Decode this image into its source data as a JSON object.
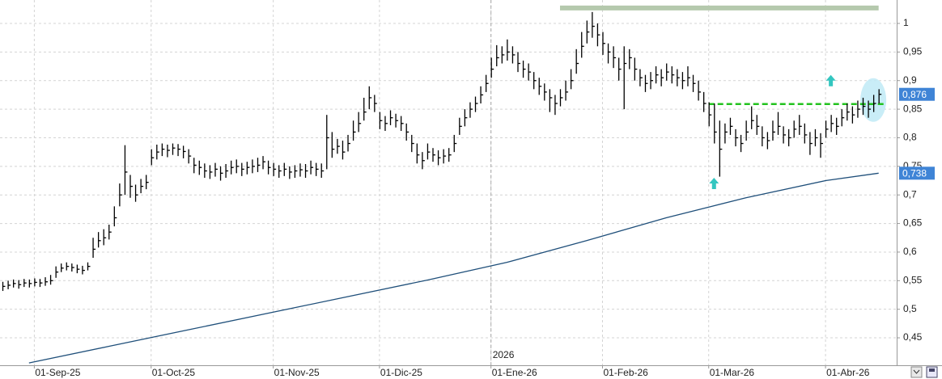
{
  "chart_data": {
    "type": "hlc",
    "color": "#000000",
    "high": [
      0.548,
      0.55,
      0.552,
      0.551,
      0.553,
      0.552,
      0.554,
      0.553,
      0.556,
      0.56,
      0.575,
      0.58,
      0.582,
      0.58,
      0.578,
      0.576,
      0.582,
      0.625,
      0.635,
      0.64,
      0.648,
      0.68,
      0.72,
      0.787,
      0.735,
      0.718,
      0.728,
      0.735,
      0.78,
      0.788,
      0.79,
      0.788,
      0.79,
      0.789,
      0.786,
      0.78,
      0.765,
      0.76,
      0.755,
      0.752,
      0.756,
      0.75,
      0.754,
      0.76,
      0.762,
      0.756,
      0.758,
      0.762,
      0.765,
      0.768,
      0.76,
      0.756,
      0.752,
      0.756,
      0.75,
      0.752,
      0.755,
      0.754,
      0.76,
      0.756,
      0.755,
      0.84,
      0.81,
      0.798,
      0.795,
      0.805,
      0.83,
      0.845,
      0.87,
      0.89,
      0.875,
      0.845,
      0.838,
      0.848,
      0.842,
      0.838,
      0.825,
      0.805,
      0.79,
      0.775,
      0.79,
      0.782,
      0.778,
      0.78,
      0.782,
      0.805,
      0.835,
      0.85,
      0.862,
      0.872,
      0.89,
      0.91,
      0.94,
      0.962,
      0.96,
      0.972,
      0.96,
      0.95,
      0.935,
      0.93,
      0.915,
      0.905,
      0.895,
      0.885,
      0.875,
      0.885,
      0.9,
      0.92,
      0.955,
      0.985,
      1.005,
      1.02,
      1.0,
      0.985,
      0.965,
      0.96,
      0.94,
      0.96,
      0.955,
      0.94,
      0.92,
      0.91,
      0.915,
      0.925,
      0.92,
      0.93,
      0.925,
      0.92,
      0.915,
      0.925,
      0.91,
      0.9,
      0.88,
      0.862,
      0.86,
      0.83,
      0.825,
      0.835,
      0.815,
      0.805,
      0.83,
      0.855,
      0.84,
      0.82,
      0.81,
      0.83,
      0.845,
      0.82,
      0.815,
      0.83,
      0.84,
      0.825,
      0.81,
      0.815,
      0.808,
      0.83,
      0.84,
      0.835,
      0.85,
      0.86,
      0.855,
      0.865,
      0.87,
      0.865,
      0.875,
      0.885
    ],
    "low": [
      0.532,
      0.535,
      0.538,
      0.536,
      0.539,
      0.538,
      0.54,
      0.539,
      0.541,
      0.543,
      0.555,
      0.565,
      0.568,
      0.566,
      0.563,
      0.561,
      0.568,
      0.59,
      0.608,
      0.612,
      0.622,
      0.645,
      0.68,
      0.7,
      0.695,
      0.688,
      0.703,
      0.71,
      0.752,
      0.762,
      0.768,
      0.766,
      0.77,
      0.768,
      0.764,
      0.755,
      0.738,
      0.735,
      0.73,
      0.728,
      0.732,
      0.725,
      0.73,
      0.736,
      0.738,
      0.733,
      0.736,
      0.738,
      0.74,
      0.745,
      0.736,
      0.733,
      0.73,
      0.733,
      0.728,
      0.73,
      0.732,
      0.73,
      0.736,
      0.733,
      0.73,
      0.745,
      0.765,
      0.772,
      0.762,
      0.776,
      0.795,
      0.81,
      0.83,
      0.85,
      0.845,
      0.815,
      0.812,
      0.822,
      0.818,
      0.812,
      0.795,
      0.775,
      0.755,
      0.745,
      0.762,
      0.758,
      0.752,
      0.755,
      0.758,
      0.775,
      0.805,
      0.82,
      0.835,
      0.845,
      0.86,
      0.88,
      0.905,
      0.925,
      0.93,
      0.935,
      0.93,
      0.915,
      0.905,
      0.9,
      0.885,
      0.875,
      0.865,
      0.845,
      0.84,
      0.855,
      0.865,
      0.885,
      0.912,
      0.94,
      0.965,
      0.975,
      0.96,
      0.945,
      0.93,
      0.922,
      0.9,
      0.85,
      0.92,
      0.9,
      0.89,
      0.88,
      0.885,
      0.895,
      0.89,
      0.9,
      0.895,
      0.89,
      0.885,
      0.89,
      0.88,
      0.865,
      0.845,
      0.82,
      0.79,
      0.732,
      0.79,
      0.805,
      0.785,
      0.775,
      0.795,
      0.815,
      0.805,
      0.785,
      0.78,
      0.795,
      0.805,
      0.79,
      0.785,
      0.8,
      0.805,
      0.79,
      0.77,
      0.785,
      0.765,
      0.8,
      0.81,
      0.805,
      0.82,
      0.83,
      0.825,
      0.835,
      0.84,
      0.835,
      0.845,
      0.86
    ],
    "close": [
      0.54,
      0.542,
      0.545,
      0.543,
      0.546,
      0.545,
      0.547,
      0.546,
      0.548,
      0.55,
      0.565,
      0.572,
      0.575,
      0.573,
      0.57,
      0.568,
      0.575,
      0.605,
      0.62,
      0.625,
      0.635,
      0.66,
      0.7,
      0.74,
      0.715,
      0.7,
      0.715,
      0.722,
      0.765,
      0.775,
      0.78,
      0.778,
      0.782,
      0.78,
      0.776,
      0.768,
      0.752,
      0.748,
      0.742,
      0.74,
      0.745,
      0.738,
      0.742,
      0.748,
      0.75,
      0.745,
      0.748,
      0.75,
      0.752,
      0.758,
      0.748,
      0.745,
      0.742,
      0.745,
      0.74,
      0.742,
      0.744,
      0.742,
      0.748,
      0.745,
      0.742,
      0.8,
      0.78,
      0.785,
      0.775,
      0.79,
      0.81,
      0.825,
      0.845,
      0.87,
      0.86,
      0.83,
      0.825,
      0.835,
      0.83,
      0.825,
      0.81,
      0.79,
      0.77,
      0.76,
      0.775,
      0.77,
      0.765,
      0.768,
      0.77,
      0.79,
      0.82,
      0.835,
      0.85,
      0.86,
      0.875,
      0.895,
      0.92,
      0.94,
      0.945,
      0.95,
      0.945,
      0.93,
      0.92,
      0.915,
      0.9,
      0.89,
      0.88,
      0.87,
      0.86,
      0.87,
      0.88,
      0.9,
      0.93,
      0.96,
      0.985,
      0.995,
      0.98,
      0.965,
      0.95,
      0.94,
      0.92,
      0.93,
      0.94,
      0.92,
      0.905,
      0.895,
      0.9,
      0.91,
      0.905,
      0.915,
      0.91,
      0.905,
      0.9,
      0.905,
      0.895,
      0.88,
      0.86,
      0.84,
      0.81,
      0.78,
      0.81,
      0.82,
      0.8,
      0.79,
      0.81,
      0.83,
      0.82,
      0.8,
      0.795,
      0.81,
      0.82,
      0.805,
      0.8,
      0.815,
      0.82,
      0.805,
      0.79,
      0.8,
      0.79,
      0.815,
      0.825,
      0.82,
      0.835,
      0.845,
      0.84,
      0.85,
      0.855,
      0.85,
      0.86,
      0.876
    ],
    "moving_average": {
      "color": "#1f4f7a",
      "x": [
        5,
        20,
        35,
        50,
        65,
        80,
        95,
        110,
        125,
        140,
        155,
        165
      ],
      "values": [
        0.406,
        0.435,
        0.464,
        0.493,
        0.522,
        0.551,
        0.582,
        0.62,
        0.66,
        0.695,
        0.725,
        0.738
      ]
    },
    "xlim": [
      -0.46,
      168.4
    ],
    "xticks": [
      {
        "value": 6,
        "label": "01-Sep-25"
      },
      {
        "value": 28,
        "label": "01-Oct-25"
      },
      {
        "value": 51,
        "label": "01-Nov-25"
      },
      {
        "value": 71,
        "label": "01-Dic-25"
      },
      {
        "value": 92,
        "label": "01-Ene-26"
      },
      {
        "value": 113,
        "label": "01-Feb-26"
      },
      {
        "value": 133,
        "label": "01-Mar-26"
      },
      {
        "value": 155,
        "label": "01-Abr-26"
      }
    ],
    "year_marker": {
      "value": 92,
      "label": "2026"
    },
    "ylim": [
      0.402,
      1.041
    ],
    "yticks": [
      1,
      {
        "value": 0.95,
        "label": "0,95"
      },
      {
        "value": 0.9,
        "label": "0,9"
      },
      {
        "value": 0.85,
        "label": "0,85"
      },
      {
        "value": 0.8,
        "label": "0,8"
      },
      {
        "value": 0.75,
        "label": "0,75"
      },
      {
        "value": 0.7,
        "label": "0,7"
      },
      {
        "value": 0.65,
        "label": "0,65"
      },
      {
        "value": 0.6,
        "label": "0,6"
      },
      {
        "value": 0.55,
        "label": "0,55"
      },
      {
        "value": 0.5,
        "label": "0,5"
      },
      {
        "value": 0.45,
        "label": "0,45"
      }
    ],
    "grid": true,
    "last_price": {
      "value": 0.876,
      "label": "0,876"
    },
    "ma_last": {
      "value": 0.738,
      "label": "0,738"
    },
    "resistance": {
      "value": 1.027,
      "x": [
        105,
        165
      ],
      "color": "#b5c9ad"
    },
    "support": {
      "value": 0.859,
      "x": [
        133,
        166.5
      ],
      "color": "#22c21e"
    },
    "arrows": {
      "color": "#33c6c0",
      "x": [
        134,
        156
      ],
      "values": [
        0.72,
        0.9
      ]
    },
    "highlight": {
      "color": "#bfeaf6",
      "x": 164,
      "value": 0.866
    }
  }
}
